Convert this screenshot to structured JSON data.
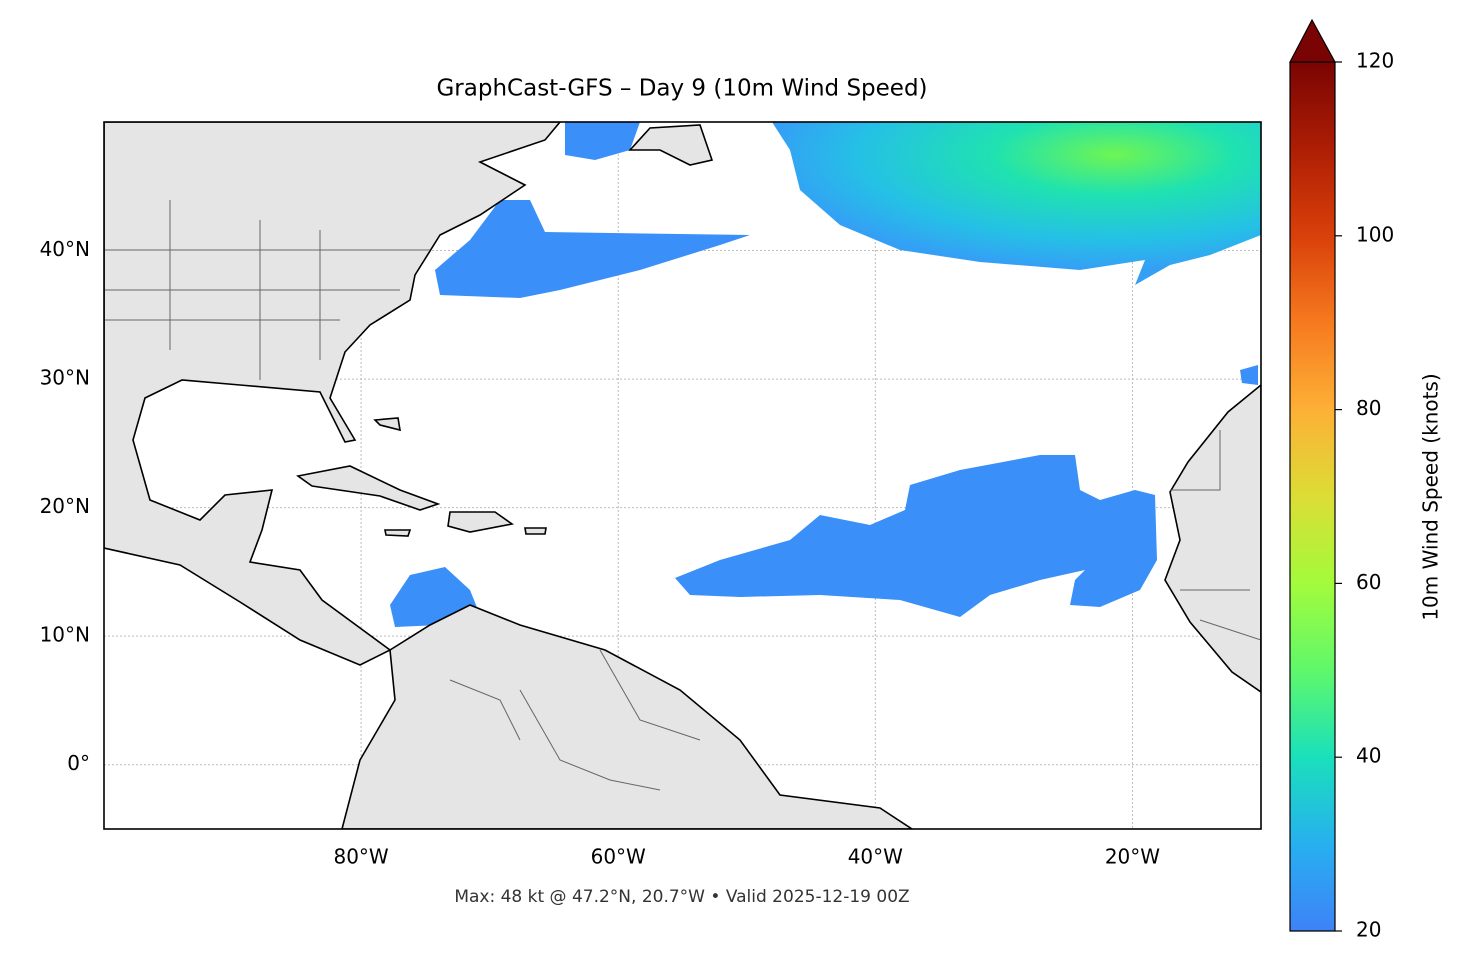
{
  "map": {
    "title": "GraphCast-GFS – Day 9 (10m Wind Speed)",
    "footnote": "Max: 48 kt @ 47.2°N, 20.7°W • Valid 2025-12-19 00Z",
    "xlim": [
      -100,
      -10
    ],
    "ylim": [
      -5,
      50
    ],
    "xticks": [
      {
        "value": -80,
        "label": "80°W"
      },
      {
        "value": -60,
        "label": "60°W"
      },
      {
        "value": -40,
        "label": "40°W"
      },
      {
        "value": -20,
        "label": "20°W"
      }
    ],
    "yticks": [
      {
        "value": 0,
        "label": "0°"
      },
      {
        "value": 10,
        "label": "10°N"
      },
      {
        "value": 20,
        "label": "20°N"
      },
      {
        "value": 30,
        "label": "30°N"
      },
      {
        "value": 40,
        "label": "40°N"
      }
    ],
    "grid": true,
    "colorbar": {
      "label": "10m Wind Speed (knots)",
      "lim": [
        20,
        120
      ],
      "ticks": [
        20,
        40,
        60,
        80,
        100,
        120
      ]
    }
  }
}
